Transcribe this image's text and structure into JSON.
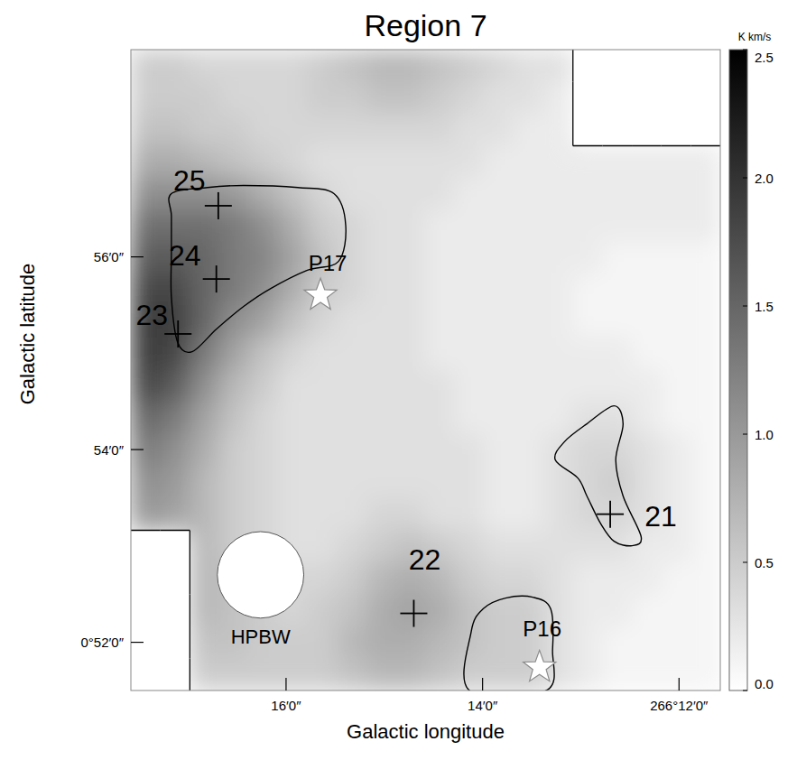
{
  "chart_data": {
    "type": "heatmap",
    "title": "Region 7",
    "x_label": "Galactic longitude",
    "y_label": "Galactic latitude",
    "xlim": [
      266.293,
      266.193
    ],
    "ylim": [
      0.85833,
      0.96917
    ],
    "xticks": [
      {
        "value": 266.26667,
        "label": "16′0″"
      },
      {
        "value": 266.23333,
        "label": "14′0″"
      },
      {
        "value": 266.2,
        "label": "266°12′0″"
      }
    ],
    "yticks": [
      {
        "value": 0.86667,
        "label": "0°52′0″"
      },
      {
        "value": 0.9,
        "label": "54′0″"
      },
      {
        "value": 0.93333,
        "label": "56′0″"
      }
    ],
    "cells": [
      [
        0.5,
        0.5,
        0.4,
        0.4,
        0.4,
        0.4,
        0.5,
        0.6,
        0.7,
        0.7,
        0.6,
        0.5,
        0.4,
        0.3,
        0.3,
        null,
        null,
        null,
        null,
        null
      ],
      [
        0.5,
        0.5,
        0.5,
        0.4,
        0.4,
        0.4,
        0.5,
        0.5,
        0.6,
        0.6,
        0.5,
        0.4,
        0.3,
        0.3,
        0.2,
        null,
        null,
        null,
        null,
        null
      ],
      [
        0.6,
        0.6,
        0.5,
        0.5,
        0.4,
        0.4,
        0.4,
        0.4,
        0.4,
        0.4,
        0.4,
        0.3,
        0.3,
        0.2,
        0.2,
        null,
        null,
        null,
        null,
        null
      ],
      [
        0.8,
        0.8,
        0.7,
        0.6,
        0.5,
        0.4,
        0.3,
        0.3,
        0.3,
        0.3,
        0.3,
        0.3,
        0.2,
        0.2,
        0.2,
        0.2,
        0.2,
        0.2,
        0.2,
        0.2
      ],
      [
        1.1,
        1.1,
        1.1,
        1.0,
        0.8,
        0.6,
        0.4,
        0.3,
        0.3,
        0.3,
        0.3,
        0.2,
        0.2,
        0.2,
        0.2,
        0.2,
        0.2,
        0.2,
        0.2,
        0.2
      ],
      [
        1.4,
        1.4,
        1.4,
        1.3,
        1.1,
        0.8,
        0.5,
        0.4,
        0.3,
        0.3,
        0.2,
        0.2,
        0.2,
        0.2,
        0.2,
        0.2,
        0.2,
        0.2,
        0.2,
        0.2
      ],
      [
        1.6,
        1.6,
        1.5,
        1.3,
        1.2,
        0.9,
        0.6,
        0.4,
        0.3,
        0.3,
        0.2,
        0.2,
        0.2,
        0.2,
        0.2,
        0.2,
        0.1,
        0.1,
        0.1,
        0.1
      ],
      [
        1.8,
        1.8,
        1.5,
        1.3,
        1.1,
        0.8,
        0.5,
        0.4,
        0.3,
        0.3,
        0.2,
        0.2,
        0.2,
        0.2,
        0.2,
        0.1,
        0.1,
        0.1,
        0.1,
        0.1
      ],
      [
        1.9,
        1.9,
        1.5,
        1.1,
        0.9,
        0.6,
        0.4,
        0.3,
        0.3,
        0.3,
        0.2,
        0.2,
        0.2,
        0.2,
        0.2,
        0.1,
        0.1,
        0.1,
        0.1,
        0.1
      ],
      [
        1.9,
        1.8,
        1.3,
        0.9,
        0.6,
        0.4,
        0.3,
        0.3,
        0.3,
        0.3,
        0.2,
        0.2,
        0.2,
        0.2,
        0.2,
        0.2,
        0.2,
        0.1,
        0.1,
        0.1
      ],
      [
        1.8,
        1.6,
        1.1,
        0.7,
        0.5,
        0.3,
        0.3,
        0.3,
        0.3,
        0.3,
        0.3,
        0.2,
        0.2,
        0.2,
        0.2,
        0.2,
        0.2,
        0.2,
        0.1,
        0.1
      ],
      [
        1.5,
        1.3,
        0.9,
        0.6,
        0.4,
        0.3,
        0.3,
        0.3,
        0.3,
        0.3,
        0.3,
        0.2,
        0.2,
        0.2,
        0.2,
        0.3,
        0.3,
        0.2,
        0.1,
        0.1
      ],
      [
        1.3,
        1.1,
        0.8,
        0.5,
        0.4,
        0.3,
        0.3,
        0.3,
        0.3,
        0.3,
        0.3,
        0.3,
        0.2,
        0.2,
        0.3,
        0.4,
        0.4,
        0.3,
        0.2,
        0.1
      ],
      [
        1.1,
        1.0,
        0.7,
        0.5,
        0.4,
        0.3,
        0.3,
        0.3,
        0.3,
        0.3,
        0.3,
        0.3,
        0.2,
        0.2,
        0.3,
        0.4,
        0.5,
        0.3,
        0.2,
        0.1
      ],
      [
        1.0,
        0.9,
        0.7,
        0.5,
        0.4,
        0.3,
        0.3,
        0.3,
        0.4,
        0.4,
        0.3,
        0.3,
        0.2,
        0.2,
        0.3,
        0.4,
        0.4,
        0.3,
        0.2,
        0.1
      ],
      [
        null,
        null,
        0.7,
        0.5,
        0.4,
        0.3,
        0.3,
        0.4,
        0.5,
        0.6,
        0.5,
        0.4,
        0.3,
        0.3,
        0.3,
        0.3,
        0.3,
        0.2,
        0.2,
        0.1
      ],
      [
        null,
        null,
        0.7,
        0.6,
        0.5,
        0.4,
        0.4,
        0.5,
        0.7,
        0.8,
        0.7,
        0.5,
        0.4,
        0.4,
        0.3,
        0.2,
        0.2,
        0.2,
        0.1,
        0.1
      ],
      [
        null,
        null,
        0.7,
        0.6,
        0.5,
        0.4,
        0.5,
        0.6,
        0.8,
        0.9,
        0.8,
        0.6,
        0.5,
        0.5,
        0.3,
        0.2,
        0.2,
        0.1,
        0.1,
        0.1
      ],
      [
        null,
        null,
        0.6,
        0.6,
        0.5,
        0.5,
        0.5,
        0.7,
        0.8,
        0.8,
        0.7,
        0.6,
        0.5,
        0.5,
        0.3,
        0.2,
        0.1,
        0.1,
        0.1,
        0.1
      ],
      [
        null,
        null,
        0.5,
        0.5,
        0.5,
        0.5,
        0.5,
        0.6,
        0.7,
        0.7,
        0.6,
        0.5,
        0.5,
        0.5,
        0.3,
        0.2,
        0.1,
        0.1,
        0.1,
        0.1
      ]
    ],
    "colorbar": {
      "label": "K km/s",
      "range": [
        0,
        2.5
      ],
      "ticks": [
        {
          "value": 0,
          "label": "0.0"
        },
        0.5,
        {
          "value": 1,
          "label": "1.0"
        },
        1.5,
        {
          "value": 2,
          "label": "2.0"
        },
        2.5
      ]
    },
    "points": [
      {
        "label": "21",
        "lon": 266.21167,
        "lat": 0.88883,
        "marker": "cross"
      },
      {
        "label": "22",
        "lon": 266.245,
        "lat": 0.87167,
        "marker": "cross"
      },
      {
        "label": "23",
        "lon": 266.285,
        "lat": 0.92,
        "marker": "cross"
      },
      {
        "label": "24",
        "lon": 266.2785,
        "lat": 0.9295,
        "marker": "cross"
      },
      {
        "label": "25",
        "lon": 266.27817,
        "lat": 0.94217,
        "marker": "cross"
      },
      {
        "label": "P16",
        "lon": 266.22367,
        "lat": 0.86233,
        "marker": "star"
      },
      {
        "label": "P17",
        "lon": 266.26083,
        "lat": 0.92667,
        "marker": "star"
      }
    ],
    "beam": {
      "label": "HPBW",
      "lon": 266.271,
      "lat": 0.87833,
      "diameter": 0.01467
    },
    "contours": [
      {
        "lon": [
          266.28613,
          266.28,
          266.27387,
          266.26467,
          266.25855,
          266.25655,
          266.25778,
          266.26315,
          266.26927,
          266.27387,
          266.27847,
          266.2826,
          266.28505,
          266.28613,
          266.28613,
          266.28613
        ],
        "lat": [
          0.94427,
          0.94533,
          0.94567,
          0.94533,
          0.94427,
          0.9388,
          0.93255,
          0.93098,
          0.92787,
          0.92475,
          0.92085,
          0.91693,
          0.9185,
          0.9263,
          0.93412,
          0.94037
        ]
      },
      {
        "lon": [
          266.21103,
          266.2095,
          266.21073,
          266.2095,
          266.20643,
          266.20797,
          266.21103,
          266.21333,
          266.21563,
          266.21717,
          266.221,
          266.21947,
          266.21563
        ],
        "lat": [
          0.90757,
          0.90445,
          0.8982,
          0.89197,
          0.88493,
          0.88337,
          0.88415,
          0.88728,
          0.89197,
          0.89508,
          0.8982,
          0.90133,
          0.90445
        ]
      },
      {
        "lon": [
          266.23555,
          266.23525,
          266.23325,
          266.22943,
          266.22483,
          266.22177,
          266.22145,
          266.22253
        ],
        "lat": [
          0.85833,
          0.86853,
          0.87245,
          0.87432,
          0.87447,
          0.87245,
          0.86542,
          0.85833
        ]
      }
    ]
  }
}
